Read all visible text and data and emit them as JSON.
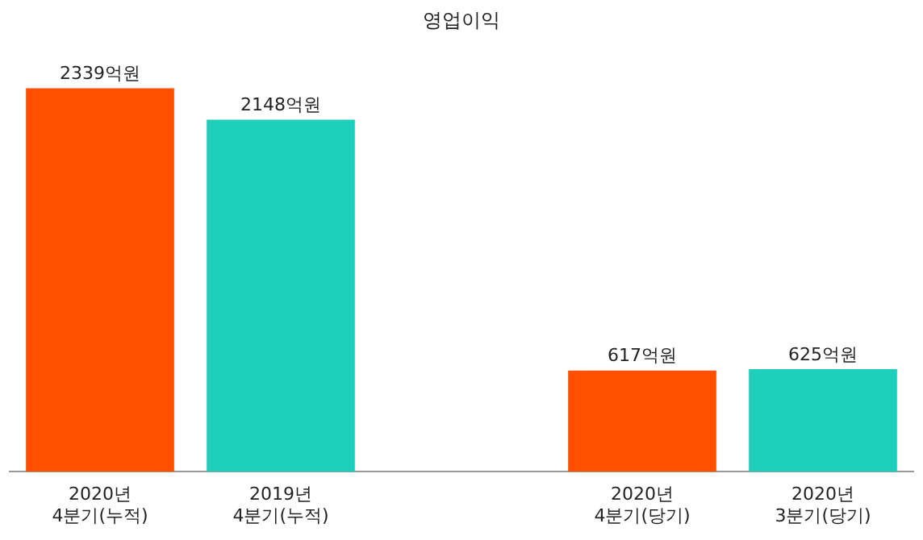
{
  "chart_data": {
    "type": "bar",
    "title": "영업이익",
    "categories": [
      "2020년\n4분기(누적)",
      "2019년\n4분기(누적)",
      null,
      "2020년\n4분기(당기)",
      "2020년\n3분기(당기)"
    ],
    "values": [
      2339,
      2148,
      null,
      617,
      625
    ],
    "colors": [
      "#ff5000",
      "#1ecfbb",
      "#1ecfbb",
      "#ff5000",
      "#1ecfbb"
    ],
    "value_labels": [
      "2339억원",
      "2148억원",
      null,
      "617억원",
      "625억원"
    ],
    "tick_labels": "x",
    "grid": false,
    "legend": false
  }
}
